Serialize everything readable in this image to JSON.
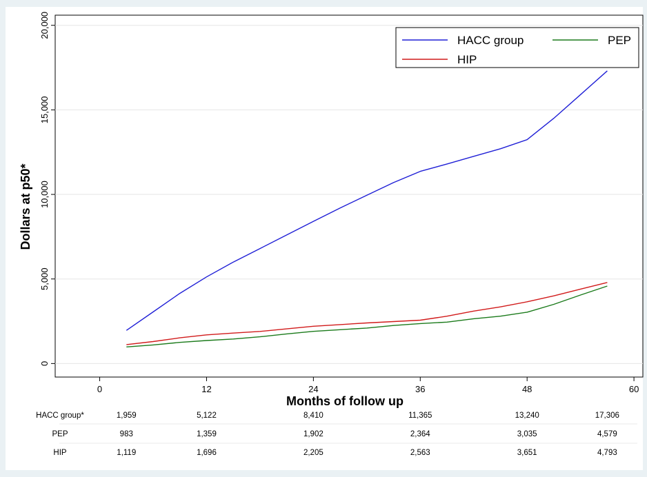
{
  "chart_data": {
    "type": "line",
    "xlabel": "Months of follow up",
    "ylabel": "Dollars at p50*",
    "xlim": [
      -5,
      61
    ],
    "ylim": [
      -800,
      20600
    ],
    "x_ticks": [
      0,
      12,
      24,
      36,
      48,
      60
    ],
    "x_tick_labels": [
      "0",
      "12",
      "24",
      "36",
      "48",
      "60"
    ],
    "y_ticks": [
      0,
      5000,
      10000,
      15000,
      20000
    ],
    "y_tick_labels": [
      "0",
      "5,000",
      "10,000",
      "15,000",
      "20,000"
    ],
    "grid": "horizontal",
    "legend_position": "top-right",
    "series": [
      {
        "name": "HACC group",
        "color": "#1f1fd6",
        "x": [
          3,
          6,
          9,
          12,
          15,
          18,
          21,
          24,
          27,
          30,
          33,
          36,
          39,
          42,
          45,
          48,
          51,
          54,
          57
        ],
        "y": [
          1959,
          3050,
          4150,
          5122,
          6000,
          6800,
          7600,
          8410,
          9200,
          9950,
          10700,
          11365,
          11800,
          12250,
          12700,
          13240,
          14500,
          15900,
          17306
        ]
      },
      {
        "name": "PEP",
        "color": "#1a7a1a",
        "x": [
          3,
          6,
          9,
          12,
          15,
          18,
          21,
          24,
          27,
          30,
          33,
          36,
          39,
          42,
          45,
          48,
          51,
          54,
          57
        ],
        "y": [
          983,
          1100,
          1250,
          1359,
          1450,
          1580,
          1750,
          1902,
          2000,
          2100,
          2250,
          2364,
          2450,
          2650,
          2800,
          3035,
          3500,
          4050,
          4579
        ]
      },
      {
        "name": "HIP",
        "color": "#d11a1a",
        "x": [
          3,
          6,
          9,
          12,
          15,
          18,
          21,
          24,
          27,
          30,
          33,
          36,
          39,
          42,
          45,
          48,
          51,
          54,
          57
        ],
        "y": [
          1119,
          1300,
          1520,
          1696,
          1800,
          1900,
          2050,
          2205,
          2300,
          2400,
          2480,
          2563,
          2800,
          3100,
          3350,
          3651,
          4000,
          4400,
          4793
        ]
      }
    ],
    "table": {
      "columns_x": [
        3,
        12,
        24,
        36,
        48,
        57
      ],
      "rows": [
        {
          "label": "HACC group*",
          "values": [
            "1,959",
            "5,122",
            "8,410",
            "11,365",
            "13,240",
            "17,306"
          ]
        },
        {
          "label": "PEP",
          "values": [
            "983",
            "1,359",
            "1,902",
            "2,364",
            "3,035",
            "4,579"
          ]
        },
        {
          "label": "HIP",
          "values": [
            "1,119",
            "1,696",
            "2,205",
            "2,563",
            "3,651",
            "4,793"
          ]
        }
      ]
    },
    "legend": {
      "items": [
        {
          "name": "HACC group",
          "color": "#1f1fd6"
        },
        {
          "name": "PEP",
          "color": "#1a7a1a"
        },
        {
          "name": "HIP",
          "color": "#d11a1a"
        }
      ]
    }
  }
}
